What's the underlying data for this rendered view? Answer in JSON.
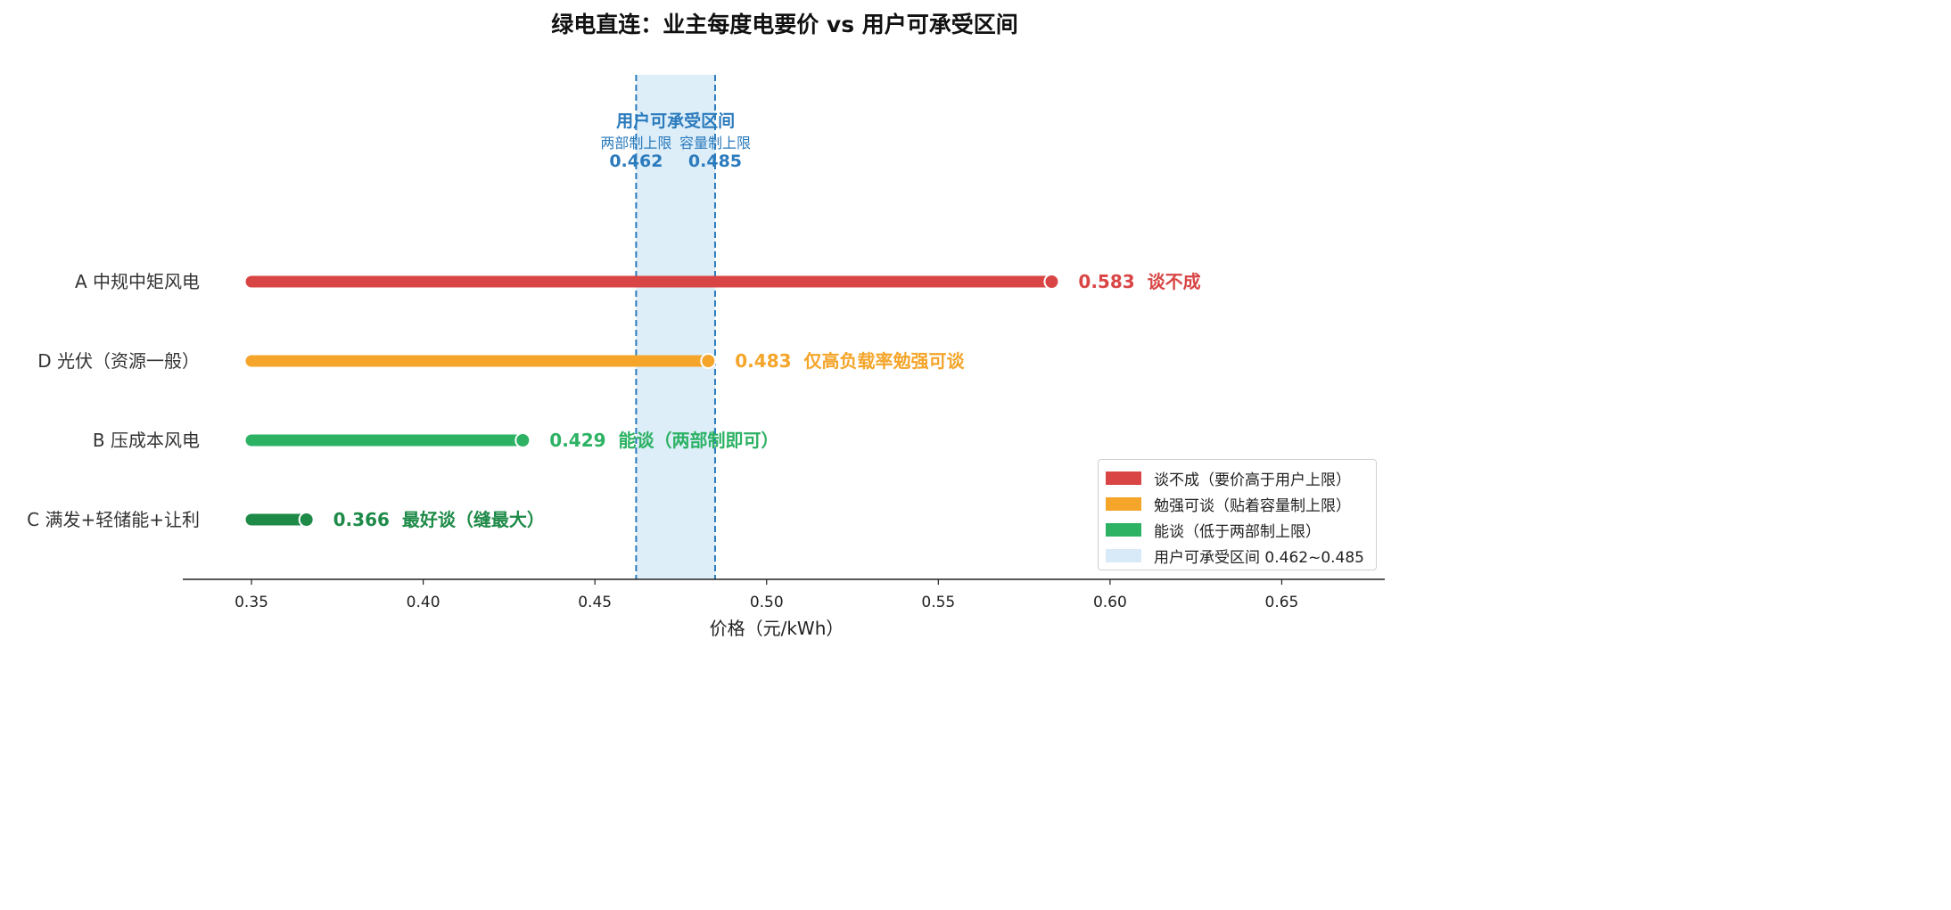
{
  "chart_data": {
    "type": "bar",
    "orientation": "horizontal",
    "title": "绿电直连：业主每度电要价 vs 用户可承受区间",
    "xlabel": "价格（元/kWh）",
    "ylabel": "",
    "xlim": [
      0.33,
      0.68
    ],
    "bar_start": 0.35,
    "xticks": [
      "0.35",
      "0.40",
      "0.45",
      "0.50",
      "0.55",
      "0.60",
      "0.65"
    ],
    "grid": false,
    "legend_position": "lower-right",
    "categories": [
      "A 中规中矩风电",
      "D 光伏（资源一般）",
      "B 压成本风电",
      "C 满发+轻储能+让利"
    ],
    "values": [
      0.583,
      0.483,
      0.429,
      0.366
    ],
    "value_labels": [
      "0.583",
      "0.483",
      "0.429",
      "0.366"
    ],
    "annotations": [
      "谈不成",
      "仅高负载率勉强可谈",
      "能谈（两部制即可）",
      "最好谈（缝最大）"
    ],
    "colors": [
      "#d94545",
      "#f4a52a",
      "#2db264",
      "#1e8a48"
    ],
    "band": {
      "low": 0.462,
      "high": 0.485,
      "title": "用户可承受区间",
      "low_label": "两部制上限",
      "high_label": "容量制上限",
      "low_value": "0.462",
      "high_value": "0.485",
      "fill": "#ddeef9",
      "line_color": "#2b7bbd"
    },
    "legend": [
      {
        "label": "谈不成（要价高于用户上限）",
        "color": "#d94545"
      },
      {
        "label": "勉强可谈（贴着容量制上限）",
        "color": "#f4a52a"
      },
      {
        "label": "能谈（低于两部制上限）",
        "color": "#2db264"
      },
      {
        "label": "用户可承受区间 0.462~0.485",
        "color": "#d8e9f8"
      }
    ]
  }
}
